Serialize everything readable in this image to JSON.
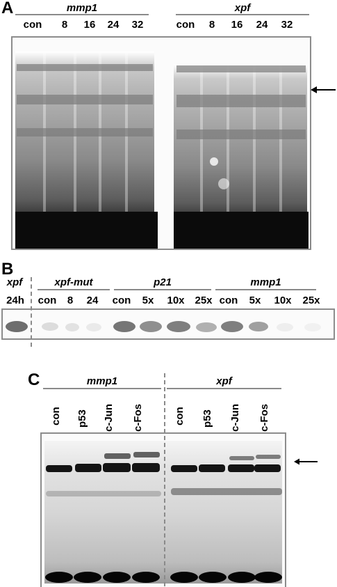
{
  "panel_a": {
    "letter": "A",
    "groups": [
      {
        "name": "mmp1",
        "lanes": [
          "con",
          "8",
          "16",
          "24",
          "32"
        ]
      },
      {
        "name": "xpf",
        "lanes": [
          "con",
          "8",
          "16",
          "24",
          "32"
        ]
      }
    ]
  },
  "panel_b": {
    "letter": "B",
    "groups": [
      {
        "name": "xpf",
        "lanes": [
          "24h"
        ]
      },
      {
        "name": "xpf-mut",
        "lanes": [
          "con",
          "8",
          "24"
        ]
      },
      {
        "name": "p21",
        "lanes": [
          "con",
          "5x",
          "10x",
          "25x"
        ]
      },
      {
        "name": "mmp1",
        "lanes": [
          "con",
          "5x",
          "10x",
          "25x"
        ]
      }
    ]
  },
  "panel_c": {
    "letter": "C",
    "groups": [
      {
        "name": "mmp1",
        "lanes": [
          "con",
          "p53",
          "c-Jun",
          "c-Fos"
        ]
      },
      {
        "name": "xpf",
        "lanes": [
          "con",
          "p53",
          "c-Jun",
          "c-Fos"
        ]
      }
    ]
  },
  "colors": {
    "frame": "#8c8c8c",
    "band": "#000000",
    "smear": "#6e6e6e"
  },
  "icons": {
    "arrow": "left-arrow-icon"
  }
}
